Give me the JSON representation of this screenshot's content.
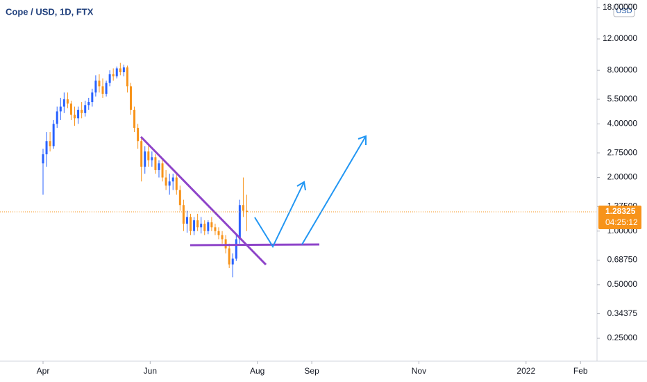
{
  "chart_data": {
    "type": "candlestick",
    "title": "Cope / USD, 1D, FTX",
    "currency": "USD",
    "last_price": 1.28325,
    "countdown": "04:25:12",
    "log_scale": true,
    "up_color": "#2962ff",
    "down_color": "#f7931a",
    "x": [
      0,
      2,
      4,
      6,
      8,
      10,
      12,
      14,
      16,
      18,
      20,
      22,
      24,
      26,
      28,
      30,
      32,
      34,
      36,
      38,
      40,
      42,
      44,
      46,
      48,
      50,
      52,
      54,
      56,
      58,
      60,
      62,
      64,
      66,
      68,
      70,
      72,
      74,
      76,
      78,
      80,
      82,
      84,
      86,
      88,
      90,
      92,
      94,
      96,
      98,
      100,
      102,
      104,
      106,
      108,
      110,
      112,
      114,
      116
    ],
    "open": [
      2.4,
      2.7,
      3.2,
      3.0,
      4.0,
      4.7,
      5.0,
      5.5,
      5.2,
      4.5,
      4.3,
      4.8,
      4.6,
      5.1,
      5.3,
      6.0,
      7.0,
      6.5,
      5.9,
      6.8,
      7.6,
      7.4,
      8.2,
      7.8,
      8.3,
      6.5,
      4.8,
      3.8,
      3.2,
      2.3,
      2.8,
      2.5,
      2.6,
      2.2,
      2.4,
      2.0,
      1.8,
      1.9,
      2.0,
      1.7,
      1.4,
      1.1,
      1.2,
      1.0,
      1.15,
      1.05,
      1.1,
      1.0,
      1.12,
      1.05,
      1.0,
      0.95,
      0.9,
      0.8,
      0.65,
      0.7,
      0.9,
      1.4,
      1.3
    ],
    "high": [
      2.9,
      3.6,
      3.6,
      4.2,
      5.0,
      5.6,
      6.0,
      6.0,
      5.4,
      5.0,
      5.0,
      5.3,
      5.4,
      5.6,
      6.3,
      7.5,
      7.6,
      7.2,
      7.0,
      8.0,
      8.2,
      8.4,
      8.8,
      8.6,
      8.5,
      6.8,
      5.0,
      4.0,
      3.4,
      3.0,
      3.0,
      2.8,
      2.7,
      2.5,
      2.5,
      2.2,
      2.1,
      2.1,
      2.1,
      1.8,
      1.5,
      1.3,
      1.25,
      1.2,
      1.25,
      1.2,
      1.15,
      1.15,
      1.2,
      1.1,
      1.05,
      1.0,
      0.95,
      0.85,
      0.75,
      0.95,
      1.5,
      2.0,
      1.6
    ],
    "low": [
      1.6,
      2.3,
      2.8,
      2.9,
      3.8,
      4.2,
      4.6,
      4.9,
      4.2,
      3.9,
      4.0,
      4.3,
      4.4,
      4.8,
      5.0,
      5.7,
      6.0,
      5.6,
      5.7,
      6.5,
      7.0,
      7.2,
      7.5,
      7.4,
      6.0,
      4.5,
      3.6,
      2.9,
      1.9,
      2.1,
      2.3,
      2.3,
      2.1,
      2.0,
      1.9,
      1.7,
      1.6,
      1.7,
      1.6,
      1.3,
      1.0,
      0.98,
      0.95,
      0.95,
      1.0,
      0.97,
      0.95,
      0.96,
      1.0,
      0.95,
      0.9,
      0.85,
      0.75,
      0.62,
      0.55,
      0.68,
      0.85,
      1.2,
      1.0
    ],
    "close": [
      2.7,
      3.2,
      3.0,
      4.0,
      4.7,
      5.0,
      5.5,
      5.2,
      4.5,
      4.3,
      4.8,
      4.6,
      5.1,
      5.3,
      6.0,
      7.0,
      6.5,
      5.9,
      6.8,
      7.6,
      7.4,
      8.2,
      7.8,
      8.3,
      6.5,
      4.8,
      3.8,
      3.2,
      2.3,
      2.8,
      2.5,
      2.6,
      2.2,
      2.4,
      2.0,
      1.8,
      1.9,
      2.0,
      1.7,
      1.4,
      1.1,
      1.2,
      1.0,
      1.15,
      1.05,
      1.1,
      1.0,
      1.12,
      1.05,
      1.0,
      0.95,
      0.9,
      0.8,
      0.65,
      0.7,
      0.9,
      1.4,
      1.3,
      1.28
    ],
    "xlim": [
      -24.5,
      315.4
    ],
    "xticks": [
      {
        "value": 0,
        "label": "Apr"
      },
      {
        "value": 61,
        "label": "Jun"
      },
      {
        "value": 122,
        "label": "Aug"
      },
      {
        "value": 153,
        "label": "Sep"
      },
      {
        "value": 214,
        "label": "Nov"
      },
      {
        "value": 275,
        "label": "2022"
      },
      {
        "value": 306,
        "label": "Feb"
      }
    ],
    "ylim": [
      0.186,
      19.85
    ],
    "yticks": [
      {
        "value": 18,
        "label": "18.00000"
      },
      {
        "value": 12,
        "label": "12.00000"
      },
      {
        "value": 8,
        "label": "8.00000"
      },
      {
        "value": 5.5,
        "label": "5.50000"
      },
      {
        "value": 4,
        "label": "4.00000"
      },
      {
        "value": 2.75,
        "label": "2.75000"
      },
      {
        "value": 2,
        "label": "2.00000"
      },
      {
        "value": 1.375,
        "label": "1.37500"
      },
      {
        "value": 1,
        "label": "1.00000"
      },
      {
        "value": 0.6875,
        "label": "0.68750"
      },
      {
        "value": 0.5,
        "label": "0.50000"
      },
      {
        "value": 0.34375,
        "label": "0.34375"
      },
      {
        "value": 0.25,
        "label": "0.25000"
      }
    ]
  }
}
